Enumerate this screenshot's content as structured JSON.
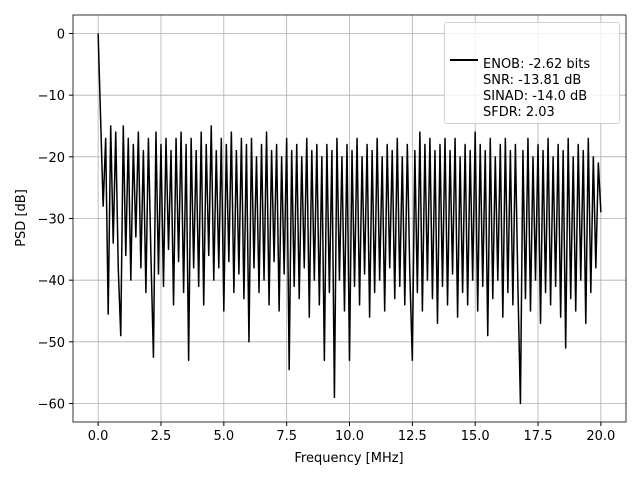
{
  "chart_data": {
    "type": "line",
    "xlabel": "Frequency [MHz]",
    "ylabel": "PSD [dB]",
    "xlim": [
      -1,
      21
    ],
    "ylim": [
      -63,
      3
    ],
    "xticks": [
      {
        "value": 0,
        "label": "0.0"
      },
      {
        "value": 2.5,
        "label": "2.5"
      },
      {
        "value": 5,
        "label": "5.0"
      },
      {
        "value": 7.5,
        "label": "7.5"
      },
      {
        "value": 10,
        "label": "10.0"
      },
      {
        "value": 12.5,
        "label": "12.5"
      },
      {
        "value": 15,
        "label": "15.0"
      },
      {
        "value": 17.5,
        "label": "17.5"
      },
      {
        "value": 20,
        "label": "20.0"
      }
    ],
    "yticks": [
      0,
      {
        "value": -10,
        "label": "−10"
      },
      {
        "value": -20,
        "label": "−20"
      },
      {
        "value": -30,
        "label": "−30"
      },
      {
        "value": -40,
        "label": "−40"
      },
      {
        "value": -50,
        "label": "−50"
      },
      {
        "value": -60,
        "label": "−60"
      }
    ],
    "grid": true,
    "legend": "upper right",
    "x": [
      0,
      0.1,
      0.2,
      0.3,
      0.4,
      0.5,
      0.6,
      0.7,
      0.8,
      0.9,
      1,
      1.1,
      1.2,
      1.3,
      1.4,
      1.5,
      1.6,
      1.7,
      1.8,
      1.9,
      2,
      2.1,
      2.2,
      2.3,
      2.4,
      2.5,
      2.6,
      2.7,
      2.8,
      2.9,
      3,
      3.1,
      3.2,
      3.3,
      3.4,
      3.5,
      3.6,
      3.7,
      3.8,
      3.9,
      4,
      4.1,
      4.2,
      4.3,
      4.4,
      4.5,
      4.6,
      4.7,
      4.8,
      4.9,
      5,
      5.1,
      5.2,
      5.3,
      5.4,
      5.5,
      5.6,
      5.7,
      5.8,
      5.9,
      6,
      6.1,
      6.2,
      6.3,
      6.4,
      6.5,
      6.6,
      6.7,
      6.8,
      6.9,
      7,
      7.1,
      7.2,
      7.3,
      7.4,
      7.5,
      7.6,
      7.7,
      7.8,
      7.9,
      8,
      8.1,
      8.2,
      8.3,
      8.4,
      8.5,
      8.6,
      8.7,
      8.8,
      8.9,
      9,
      9.1,
      9.2,
      9.3,
      9.4,
      9.5,
      9.6,
      9.7,
      9.8,
      9.9,
      10,
      10.1,
      10.2,
      10.3,
      10.4,
      10.5,
      10.6,
      10.7,
      10.8,
      10.9,
      11,
      11.1,
      11.2,
      11.3,
      11.4,
      11.5,
      11.6,
      11.7,
      11.8,
      11.9,
      12,
      12.1,
      12.2,
      12.3,
      12.4,
      12.5,
      12.6,
      12.7,
      12.8,
      12.9,
      13,
      13.1,
      13.2,
      13.3,
      13.4,
      13.5,
      13.6,
      13.7,
      13.8,
      13.9,
      14,
      14.1,
      14.2,
      14.3,
      14.4,
      14.5,
      14.6,
      14.7,
      14.8,
      14.9,
      15,
      15.1,
      15.2,
      15.3,
      15.4,
      15.5,
      15.6,
      15.7,
      15.8,
      15.9,
      16,
      16.1,
      16.2,
      16.3,
      16.4,
      16.5,
      16.6,
      16.7,
      16.8,
      16.9,
      17,
      17.1,
      17.2,
      17.3,
      17.4,
      17.5,
      17.6,
      17.7,
      17.8,
      17.9,
      18,
      18.1,
      18.2,
      18.3,
      18.4,
      18.5,
      18.6,
      18.7,
      18.8,
      18.9,
      19,
      19.1,
      19.2,
      19.3,
      19.4,
      19.5,
      19.6,
      19.7,
      19.8,
      19.9,
      20
    ],
    "series": [
      {
        "name": "ENOB: -2.62 bits\nSNR: -13.81 dB\nSINAD: -14.0 dB\nSFDR: 2.03",
        "color": "#000000",
        "values": [
          0,
          -14,
          -28,
          -17,
          -45.5,
          -15,
          -34,
          -16,
          -38,
          -49,
          -15,
          -36,
          -17,
          -40,
          -18,
          -33,
          -16,
          -38,
          -19,
          -42,
          -17,
          -36,
          -52.5,
          -16,
          -39,
          -18,
          -41,
          -17,
          -35,
          -19,
          -44,
          -17,
          -37,
          -16,
          -42,
          -18,
          -53,
          -17,
          -38,
          -19,
          -41,
          -16,
          -44,
          -18,
          -36,
          -15,
          -40,
          -19,
          -38,
          -17,
          -45,
          -18,
          -37,
          -16,
          -42,
          -19,
          -39,
          -17,
          -43,
          -18,
          -50,
          -17,
          -38,
          -20,
          -42,
          -18,
          -40,
          -16,
          -44,
          -19,
          -37,
          -18,
          -45,
          -20,
          -39,
          -17,
          -54.5,
          -19,
          -41,
          -18,
          -43,
          -20,
          -38,
          -17,
          -46,
          -19,
          -40,
          -18,
          -44,
          -20,
          -53,
          -18,
          -42,
          -19,
          -59,
          -17,
          -40,
          -20,
          -45,
          -18,
          -53,
          -19,
          -41,
          -17,
          -44,
          -20,
          -39,
          -18,
          -46,
          -19,
          -42,
          -17,
          -40,
          -20,
          -45,
          -18,
          -38,
          -19,
          -43,
          -17,
          -41,
          -20,
          -44,
          -18,
          -39,
          -53,
          -19,
          -42,
          -16,
          -45,
          -18,
          -40,
          -17,
          -43,
          -19,
          -47,
          -18,
          -41,
          -17,
          -44,
          -19,
          -39,
          -17,
          -46,
          -20,
          -42,
          -18,
          -44,
          -19,
          -40,
          -16,
          -45,
          -18,
          -41,
          -19,
          -49,
          -17,
          -43,
          -20,
          -40,
          -18,
          -46,
          -17,
          -42,
          -19,
          -44,
          -18,
          -41,
          -60,
          -19,
          -43,
          -17,
          -45,
          -20,
          -40,
          -18,
          -47,
          -19,
          -42,
          -17,
          -44,
          -20,
          -41,
          -18,
          -46,
          -19,
          -51,
          -17,
          -43,
          -20,
          -45,
          -18,
          -40,
          -19,
          -47,
          -17,
          -42,
          -20,
          -38,
          -21,
          -29
        ]
      }
    ]
  }
}
